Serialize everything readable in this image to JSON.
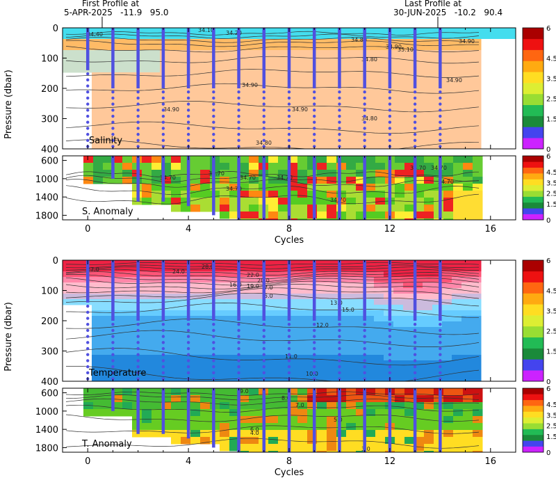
{
  "header": {
    "first_label": "First Profile at",
    "first_info": "5-APR-2025   -11.9   95.0",
    "last_label": "Last Profile at",
    "last_info": "30-JUN-2025   -10.2   90.4"
  },
  "colors": {
    "profile_line": "#5050e0",
    "contour": "#303030",
    "colorbar": [
      "#cc22ff",
      "#4444ee",
      "#1a8a3a",
      "#22bb55",
      "#99dd33",
      "#ddee33",
      "#ffdd22",
      "#ffaa11",
      "#ff6611",
      "#ee1111",
      "#aa0000"
    ]
  },
  "chart_data": [
    {
      "type": "heatmap",
      "panel": "salinity",
      "label": "Salinity",
      "ylabel": "Pressure (dbar)",
      "yticks": [
        "0",
        "100",
        "200",
        "300",
        "400"
      ],
      "ylim": [
        0,
        400
      ],
      "xlim": [
        -1,
        17
      ],
      "xticks": [],
      "colorbar_ticks": [
        "6",
        "4.5",
        "3.5",
        "2.5",
        "1.5",
        "0"
      ],
      "contour_labels": [
        "34.40",
        "34.10",
        "34.20",
        "34.80",
        "34.80",
        "34.90",
        "34.90",
        "34.90",
        "34.90",
        "34.80",
        "35.10",
        "34.90",
        "34.90",
        "34.80"
      ]
    },
    {
      "type": "heatmap",
      "panel": "salinity_anomaly",
      "label": "S. Anomaly",
      "yticks": [
        "600",
        "1000",
        "1400",
        "1800"
      ],
      "ylim": [
        500,
        1900
      ],
      "xlim": [
        -1,
        17
      ],
      "xticks": [
        "0",
        "4",
        "8",
        "12",
        "16"
      ],
      "xlabel": "Cycles",
      "colorbar_ticks": [
        "6",
        "4.5",
        "3.5",
        "2.5",
        "1.5",
        "0"
      ],
      "contour_labels": [
        "34.70",
        "34.70",
        "34.70",
        "34.70",
        "34.70",
        "34.70",
        "34.70",
        "34.70",
        "34.70"
      ]
    },
    {
      "type": "heatmap",
      "panel": "temperature",
      "label": "Temperature",
      "ylabel": "Pressure (dbar)",
      "yticks": [
        "0",
        "100",
        "200",
        "300",
        "400"
      ],
      "ylim": [
        0,
        400
      ],
      "xlim": [
        -1,
        17
      ],
      "xticks": [],
      "colorbar_ticks": [
        "6",
        "4.5",
        "3.5",
        "2.5",
        "1.5",
        "0"
      ],
      "contour_labels": [
        "27.0",
        "28.0",
        "24.0",
        "22.0",
        "20.0",
        "19.0",
        "16.0",
        "7.0",
        "5.0",
        "13.0",
        "15.0",
        "12.0",
        "11.0",
        "10.0"
      ]
    },
    {
      "type": "heatmap",
      "panel": "temperature_anomaly",
      "label": "T. Anomaly",
      "yticks": [
        "600",
        "1000",
        "1400",
        "1800"
      ],
      "ylim": [
        500,
        1900
      ],
      "xlim": [
        -1,
        17
      ],
      "xticks": [
        "0",
        "4",
        "8",
        "12",
        "16"
      ],
      "xlabel": "Cycles",
      "colorbar_ticks": [
        "6",
        "4.5",
        "3.5",
        "2.5",
        "1.5",
        "0"
      ],
      "contour_labels": [
        "9.0",
        "8.0",
        "7.0",
        "6.0",
        "5.0",
        "4.0",
        "3.0"
      ]
    }
  ],
  "profiles": {
    "cycles": [
      0,
      1,
      2,
      3,
      4,
      5,
      6,
      7,
      8,
      9,
      10,
      11,
      12,
      13,
      14
    ],
    "shallow_depth_dbar": [
      140,
      200,
      200,
      200,
      200,
      200,
      200,
      200,
      200,
      200,
      200,
      200,
      200,
      200,
      200
    ],
    "deep_depth_dbar": [
      null,
      1000,
      1500,
      1500,
      1600,
      1800,
      1900,
      1900,
      1900,
      1900,
      1900,
      1900,
      1900,
      1900,
      1900
    ]
  }
}
